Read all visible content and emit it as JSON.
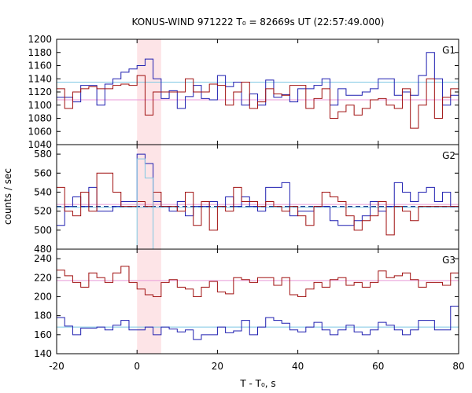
{
  "chart_data": {
    "type": "line",
    "title": "KONUS-WIND 971222 T₀ = 82669s UT (22:57:49.000)",
    "xlabel": "T - T₀, s",
    "ylabel": "counts / sec",
    "xlim": [
      -20,
      80
    ],
    "x_ticks": [
      "-20",
      "0",
      "20",
      "40",
      "60",
      "80"
    ],
    "highlight_interval": [
      0,
      6
    ],
    "bin_width": 2,
    "bin_starts": [
      -20,
      -18,
      -16,
      -14,
      -12,
      -10,
      -8,
      -6,
      -4,
      -2,
      0,
      2,
      4,
      6,
      8,
      10,
      12,
      14,
      16,
      18,
      20,
      22,
      24,
      26,
      28,
      30,
      32,
      34,
      36,
      38,
      40,
      42,
      44,
      46,
      48,
      50,
      52,
      54,
      56,
      58,
      60,
      62,
      64,
      66,
      68,
      70,
      72,
      74,
      76,
      78
    ],
    "colors": {
      "blue": "#1f1fb0",
      "red": "#a01010",
      "cyan": "#7ec8e3",
      "pink": "#e89ad8",
      "highlight": "#fde4e7",
      "darkblue": "#1f3f8f"
    },
    "panels": [
      {
        "label": "G1",
        "ylim": [
          1040,
          1200
        ],
        "y_ticks": [
          "1040",
          "1060",
          "1080",
          "1100",
          "1120",
          "1140",
          "1160",
          "1180",
          "1200"
        ],
        "series": [
          {
            "color": "blue",
            "values": [
              1112,
              1112,
              1105,
              1130,
              1130,
              1100,
              1132,
              1140,
              1150,
              1155,
              1160,
              1170,
              1140,
              1110,
              1122,
              1095,
              1113,
              1130,
              1110,
              1108,
              1145,
              1128,
              1135,
              1100,
              1117,
              1100,
              1138,
              1112,
              1116,
              1105,
              1125,
              1125,
              1130,
              1140,
              1100,
              1125,
              1115,
              1115,
              1120,
              1125,
              1140,
              1140,
              1115,
              1120,
              1115,
              1145,
              1180,
              1140,
              1100,
              1115
            ]
          },
          {
            "color": "red",
            "values": [
              1125,
              1095,
              1120,
              1125,
              1128,
              1125,
              1125,
              1130,
              1132,
              1130,
              1145,
              1085,
              1120,
              1120,
              1120,
              1120,
              1140,
              1120,
              1120,
              1132,
              1130,
              1100,
              1120,
              1135,
              1095,
              1105,
              1125,
              1117,
              1115,
              1130,
              1130,
              1095,
              1110,
              1125,
              1080,
              1090,
              1100,
              1085,
              1095,
              1108,
              1110,
              1100,
              1095,
              1125,
              1065,
              1100,
              1140,
              1080,
              1112,
              1125
            ]
          }
        ],
        "refs": [
          {
            "color": "cyan",
            "value": 1135
          },
          {
            "color": "pink",
            "value": 1108
          }
        ]
      },
      {
        "label": "G2",
        "ylim": [
          480,
          590
        ],
        "y_ticks": [
          "480",
          "500",
          "520",
          "540",
          "560",
          "580"
        ],
        "series": [
          {
            "color": "blue",
            "values": [
              505,
              525,
              535,
              525,
              545,
              520,
              520,
              525,
              530,
              530,
              580,
              570,
              530,
              525,
              520,
              530,
              515,
              525,
              525,
              530,
              525,
              535,
              525,
              535,
              525,
              520,
              545,
              545,
              550,
              515,
              520,
              520,
              525,
              525,
              510,
              505,
              505,
              510,
              515,
              530,
              520,
              525,
              550,
              540,
              530,
              540,
              545,
              530,
              540,
              525
            ]
          },
          {
            "color": "red",
            "values": [
              545,
              520,
              515,
              540,
              520,
              560,
              560,
              540,
              525,
              525,
              530,
              525,
              540,
              525,
              525,
              520,
              540,
              505,
              530,
              500,
              525,
              520,
              545,
              530,
              530,
              525,
              530,
              525,
              520,
              525,
              515,
              505,
              525,
              540,
              535,
              530,
              515,
              500,
              510,
              515,
              530,
              495,
              525,
              520,
              510,
              525,
              525,
              525,
              525,
              525
            ]
          },
          {
            "color": "cyan",
            "values": [
              null,
              null,
              null,
              null,
              null,
              null,
              null,
              null,
              null,
              null,
              575,
              555,
              null,
              null,
              null,
              null,
              null,
              null,
              null,
              null,
              null,
              null,
              null,
              null,
              null,
              null,
              null,
              null,
              null,
              null,
              null,
              null,
              null,
              null,
              null,
              null,
              null,
              null,
              null,
              null,
              null,
              null,
              null,
              null,
              null,
              null,
              null,
              null,
              null,
              null
            ]
          }
        ],
        "refs": [
          {
            "color": "pink",
            "value": 527
          },
          {
            "color": "cyan",
            "value": 524
          },
          {
            "color": "darkblue",
            "value": 525,
            "dashed": true
          }
        ]
      },
      {
        "label": "G3",
        "ylim": [
          140,
          250
        ],
        "y_ticks": [
          "140",
          "160",
          "180",
          "200",
          "220",
          "240"
        ],
        "series": [
          {
            "color": "red",
            "values": [
              228,
              222,
              215,
              210,
              225,
              220,
              215,
              225,
              232,
              215,
              208,
              202,
              200,
              215,
              218,
              210,
              208,
              200,
              210,
              216,
              205,
              203,
              220,
              218,
              215,
              220,
              220,
              212,
              220,
              202,
              200,
              208,
              215,
              210,
              218,
              220,
              212,
              215,
              210,
              215,
              227,
              220,
              222,
              225,
              218,
              210,
              215,
              215,
              212,
              225
            ]
          },
          {
            "color": "blue",
            "values": [
              178,
              169,
              160,
              167,
              167,
              168,
              165,
              170,
              175,
              165,
              165,
              168,
              160,
              168,
              166,
              163,
              165,
              155,
              160,
              160,
              168,
              162,
              164,
              175,
              160,
              168,
              178,
              175,
              172,
              165,
              163,
              168,
              173,
              165,
              160,
              165,
              170,
              163,
              160,
              165,
              173,
              170,
              165,
              160,
              165,
              175,
              175,
              165,
              165,
              190
            ]
          }
        ],
        "refs": [
          {
            "color": "pink",
            "value": 217
          },
          {
            "color": "cyan",
            "value": 168
          }
        ]
      }
    ]
  }
}
